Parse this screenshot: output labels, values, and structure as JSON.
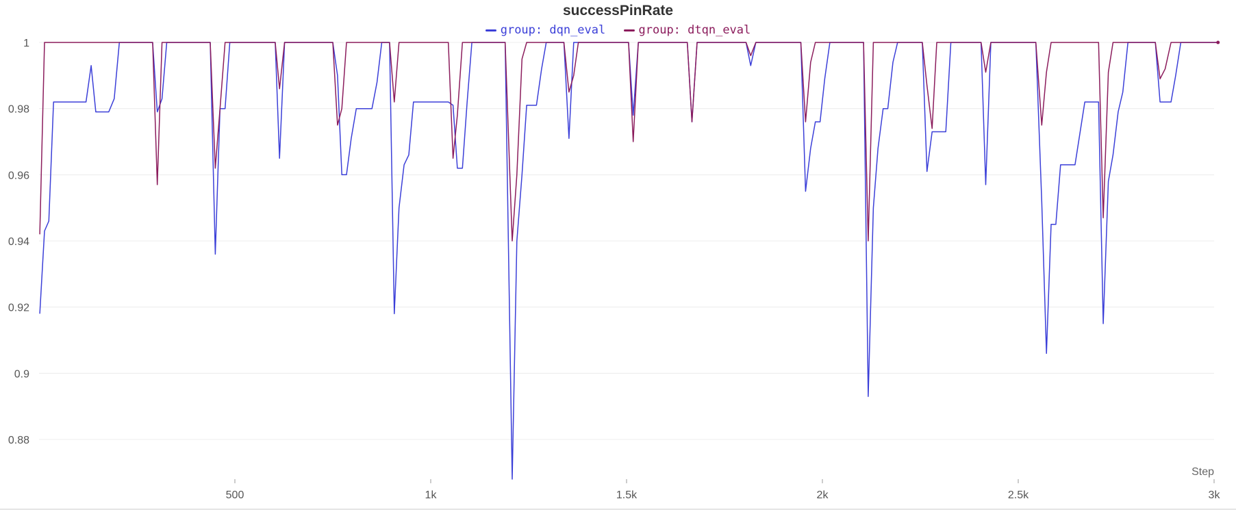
{
  "chart_data": {
    "type": "line",
    "title": "successPinRate",
    "xlabel": "Step",
    "ylabel": "",
    "xlim": [
      0,
      3000
    ],
    "ylim": [
      0.868,
      1.0
    ],
    "x_ticks": [
      {
        "value": 500,
        "label": "500"
      },
      {
        "value": 1000,
        "label": "1k"
      },
      {
        "value": 1500,
        "label": "1.5k"
      },
      {
        "value": 2000,
        "label": "2k"
      },
      {
        "value": 2500,
        "label": "2.5k"
      },
      {
        "value": 3000,
        "label": "3k"
      }
    ],
    "y_ticks": [
      {
        "value": 1.0,
        "label": "1"
      },
      {
        "value": 0.98,
        "label": "0.98"
      },
      {
        "value": 0.96,
        "label": "0.96"
      },
      {
        "value": 0.94,
        "label": "0.94"
      },
      {
        "value": 0.92,
        "label": "0.92"
      },
      {
        "value": 0.9,
        "label": "0.9"
      },
      {
        "value": 0.88,
        "label": "0.88"
      }
    ],
    "grid": true,
    "legend_position": "top-center",
    "series": [
      {
        "name": "group: dqn_eval",
        "color": "#3b3fd8",
        "points": [
          [
            2,
            0.918
          ],
          [
            14,
            0.943
          ],
          [
            25,
            0.946
          ],
          [
            37,
            0.982
          ],
          [
            120,
            0.982
          ],
          [
            133,
            0.993
          ],
          [
            145,
            0.979
          ],
          [
            178,
            0.979
          ],
          [
            192,
            0.983
          ],
          [
            205,
            1.0
          ],
          [
            290,
            1.0
          ],
          [
            302,
            0.979
          ],
          [
            314,
            0.983
          ],
          [
            326,
            1.0
          ],
          [
            437,
            1.0
          ],
          [
            450,
            0.936
          ],
          [
            462,
            0.98
          ],
          [
            475,
            0.98
          ],
          [
            487,
            1.0
          ],
          [
            603,
            1.0
          ],
          [
            614,
            0.965
          ],
          [
            627,
            1.0
          ],
          [
            750,
            1.0
          ],
          [
            762,
            0.99
          ],
          [
            773,
            0.96
          ],
          [
            785,
            0.96
          ],
          [
            797,
            0.971
          ],
          [
            810,
            0.98
          ],
          [
            850,
            0.98
          ],
          [
            863,
            0.988
          ],
          [
            875,
            1.0
          ],
          [
            895,
            1.0
          ],
          [
            907,
            0.918
          ],
          [
            919,
            0.95
          ],
          [
            932,
            0.963
          ],
          [
            944,
            0.966
          ],
          [
            956,
            0.982
          ],
          [
            1045,
            0.982
          ],
          [
            1057,
            0.981
          ],
          [
            1068,
            0.962
          ],
          [
            1081,
            0.962
          ],
          [
            1093,
            0.982
          ],
          [
            1105,
            1.0
          ],
          [
            1190,
            1.0
          ],
          [
            1208,
            0.868
          ],
          [
            1220,
            0.94
          ],
          [
            1233,
            0.96
          ],
          [
            1245,
            0.981
          ],
          [
            1270,
            0.981
          ],
          [
            1283,
            0.992
          ],
          [
            1295,
            1.0
          ],
          [
            1340,
            1.0
          ],
          [
            1353,
            0.971
          ],
          [
            1365,
            1.0
          ],
          [
            1505,
            1.0
          ],
          [
            1517,
            0.978
          ],
          [
            1530,
            1.0
          ],
          [
            1655,
            1.0
          ],
          [
            1667,
            0.976
          ],
          [
            1680,
            1.0
          ],
          [
            1805,
            1.0
          ],
          [
            1817,
            0.993
          ],
          [
            1830,
            1.0
          ],
          [
            1945,
            1.0
          ],
          [
            1957,
            0.955
          ],
          [
            1970,
            0.968
          ],
          [
            1982,
            0.976
          ],
          [
            1994,
            0.976
          ],
          [
            2006,
            0.989
          ],
          [
            2019,
            1.0
          ],
          [
            2105,
            1.0
          ],
          [
            2117,
            0.893
          ],
          [
            2130,
            0.95
          ],
          [
            2142,
            0.968
          ],
          [
            2155,
            0.98
          ],
          [
            2167,
            0.98
          ],
          [
            2180,
            0.994
          ],
          [
            2192,
            1.0
          ],
          [
            2255,
            1.0
          ],
          [
            2267,
            0.961
          ],
          [
            2280,
            0.973
          ],
          [
            2315,
            0.973
          ],
          [
            2328,
            1.0
          ],
          [
            2405,
            1.0
          ],
          [
            2417,
            0.957
          ],
          [
            2430,
            1.0
          ],
          [
            2545,
            1.0
          ],
          [
            2560,
            0.952
          ],
          [
            2572,
            0.906
          ],
          [
            2584,
            0.945
          ],
          [
            2596,
            0.945
          ],
          [
            2608,
            0.963
          ],
          [
            2645,
            0.963
          ],
          [
            2670,
            0.982
          ],
          [
            2705,
            0.982
          ],
          [
            2717,
            0.915
          ],
          [
            2730,
            0.958
          ],
          [
            2742,
            0.966
          ],
          [
            2755,
            0.979
          ],
          [
            2767,
            0.985
          ],
          [
            2780,
            1.0
          ],
          [
            2850,
            1.0
          ],
          [
            2862,
            0.982
          ],
          [
            2890,
            0.982
          ],
          [
            2902,
            0.99
          ],
          [
            2915,
            1.0
          ],
          [
            3010,
            1.0
          ]
        ]
      },
      {
        "name": "group: dtqn_eval",
        "color": "#8b1c5c",
        "points": [
          [
            2,
            0.942
          ],
          [
            14,
            1.0
          ],
          [
            290,
            1.0
          ],
          [
            302,
            0.957
          ],
          [
            314,
            1.0
          ],
          [
            437,
            1.0
          ],
          [
            450,
            0.962
          ],
          [
            462,
            0.98
          ],
          [
            475,
            1.0
          ],
          [
            603,
            1.0
          ],
          [
            614,
            0.986
          ],
          [
            627,
            1.0
          ],
          [
            750,
            1.0
          ],
          [
            762,
            0.975
          ],
          [
            773,
            0.98
          ],
          [
            785,
            1.0
          ],
          [
            895,
            1.0
          ],
          [
            907,
            0.982
          ],
          [
            919,
            1.0
          ],
          [
            1045,
            1.0
          ],
          [
            1057,
            0.965
          ],
          [
            1068,
            0.978
          ],
          [
            1081,
            1.0
          ],
          [
            1190,
            1.0
          ],
          [
            1208,
            0.94
          ],
          [
            1220,
            0.96
          ],
          [
            1233,
            0.995
          ],
          [
            1245,
            1.0
          ],
          [
            1340,
            1.0
          ],
          [
            1353,
            0.985
          ],
          [
            1365,
            0.99
          ],
          [
            1377,
            1.0
          ],
          [
            1505,
            1.0
          ],
          [
            1517,
            0.97
          ],
          [
            1530,
            1.0
          ],
          [
            1655,
            1.0
          ],
          [
            1667,
            0.976
          ],
          [
            1680,
            1.0
          ],
          [
            1805,
            1.0
          ],
          [
            1817,
            0.996
          ],
          [
            1830,
            1.0
          ],
          [
            1945,
            1.0
          ],
          [
            1957,
            0.976
          ],
          [
            1970,
            0.994
          ],
          [
            1982,
            1.0
          ],
          [
            2105,
            1.0
          ],
          [
            2117,
            0.94
          ],
          [
            2130,
            1.0
          ],
          [
            2255,
            1.0
          ],
          [
            2267,
            0.987
          ],
          [
            2280,
            0.974
          ],
          [
            2292,
            1.0
          ],
          [
            2405,
            1.0
          ],
          [
            2417,
            0.991
          ],
          [
            2430,
            1.0
          ],
          [
            2545,
            1.0
          ],
          [
            2560,
            0.975
          ],
          [
            2572,
            0.991
          ],
          [
            2584,
            1.0
          ],
          [
            2705,
            1.0
          ],
          [
            2717,
            0.947
          ],
          [
            2730,
            0.991
          ],
          [
            2742,
            1.0
          ],
          [
            2850,
            1.0
          ],
          [
            2862,
            0.989
          ],
          [
            2875,
            0.992
          ],
          [
            2890,
            1.0
          ],
          [
            3010,
            1.0
          ]
        ]
      }
    ]
  }
}
